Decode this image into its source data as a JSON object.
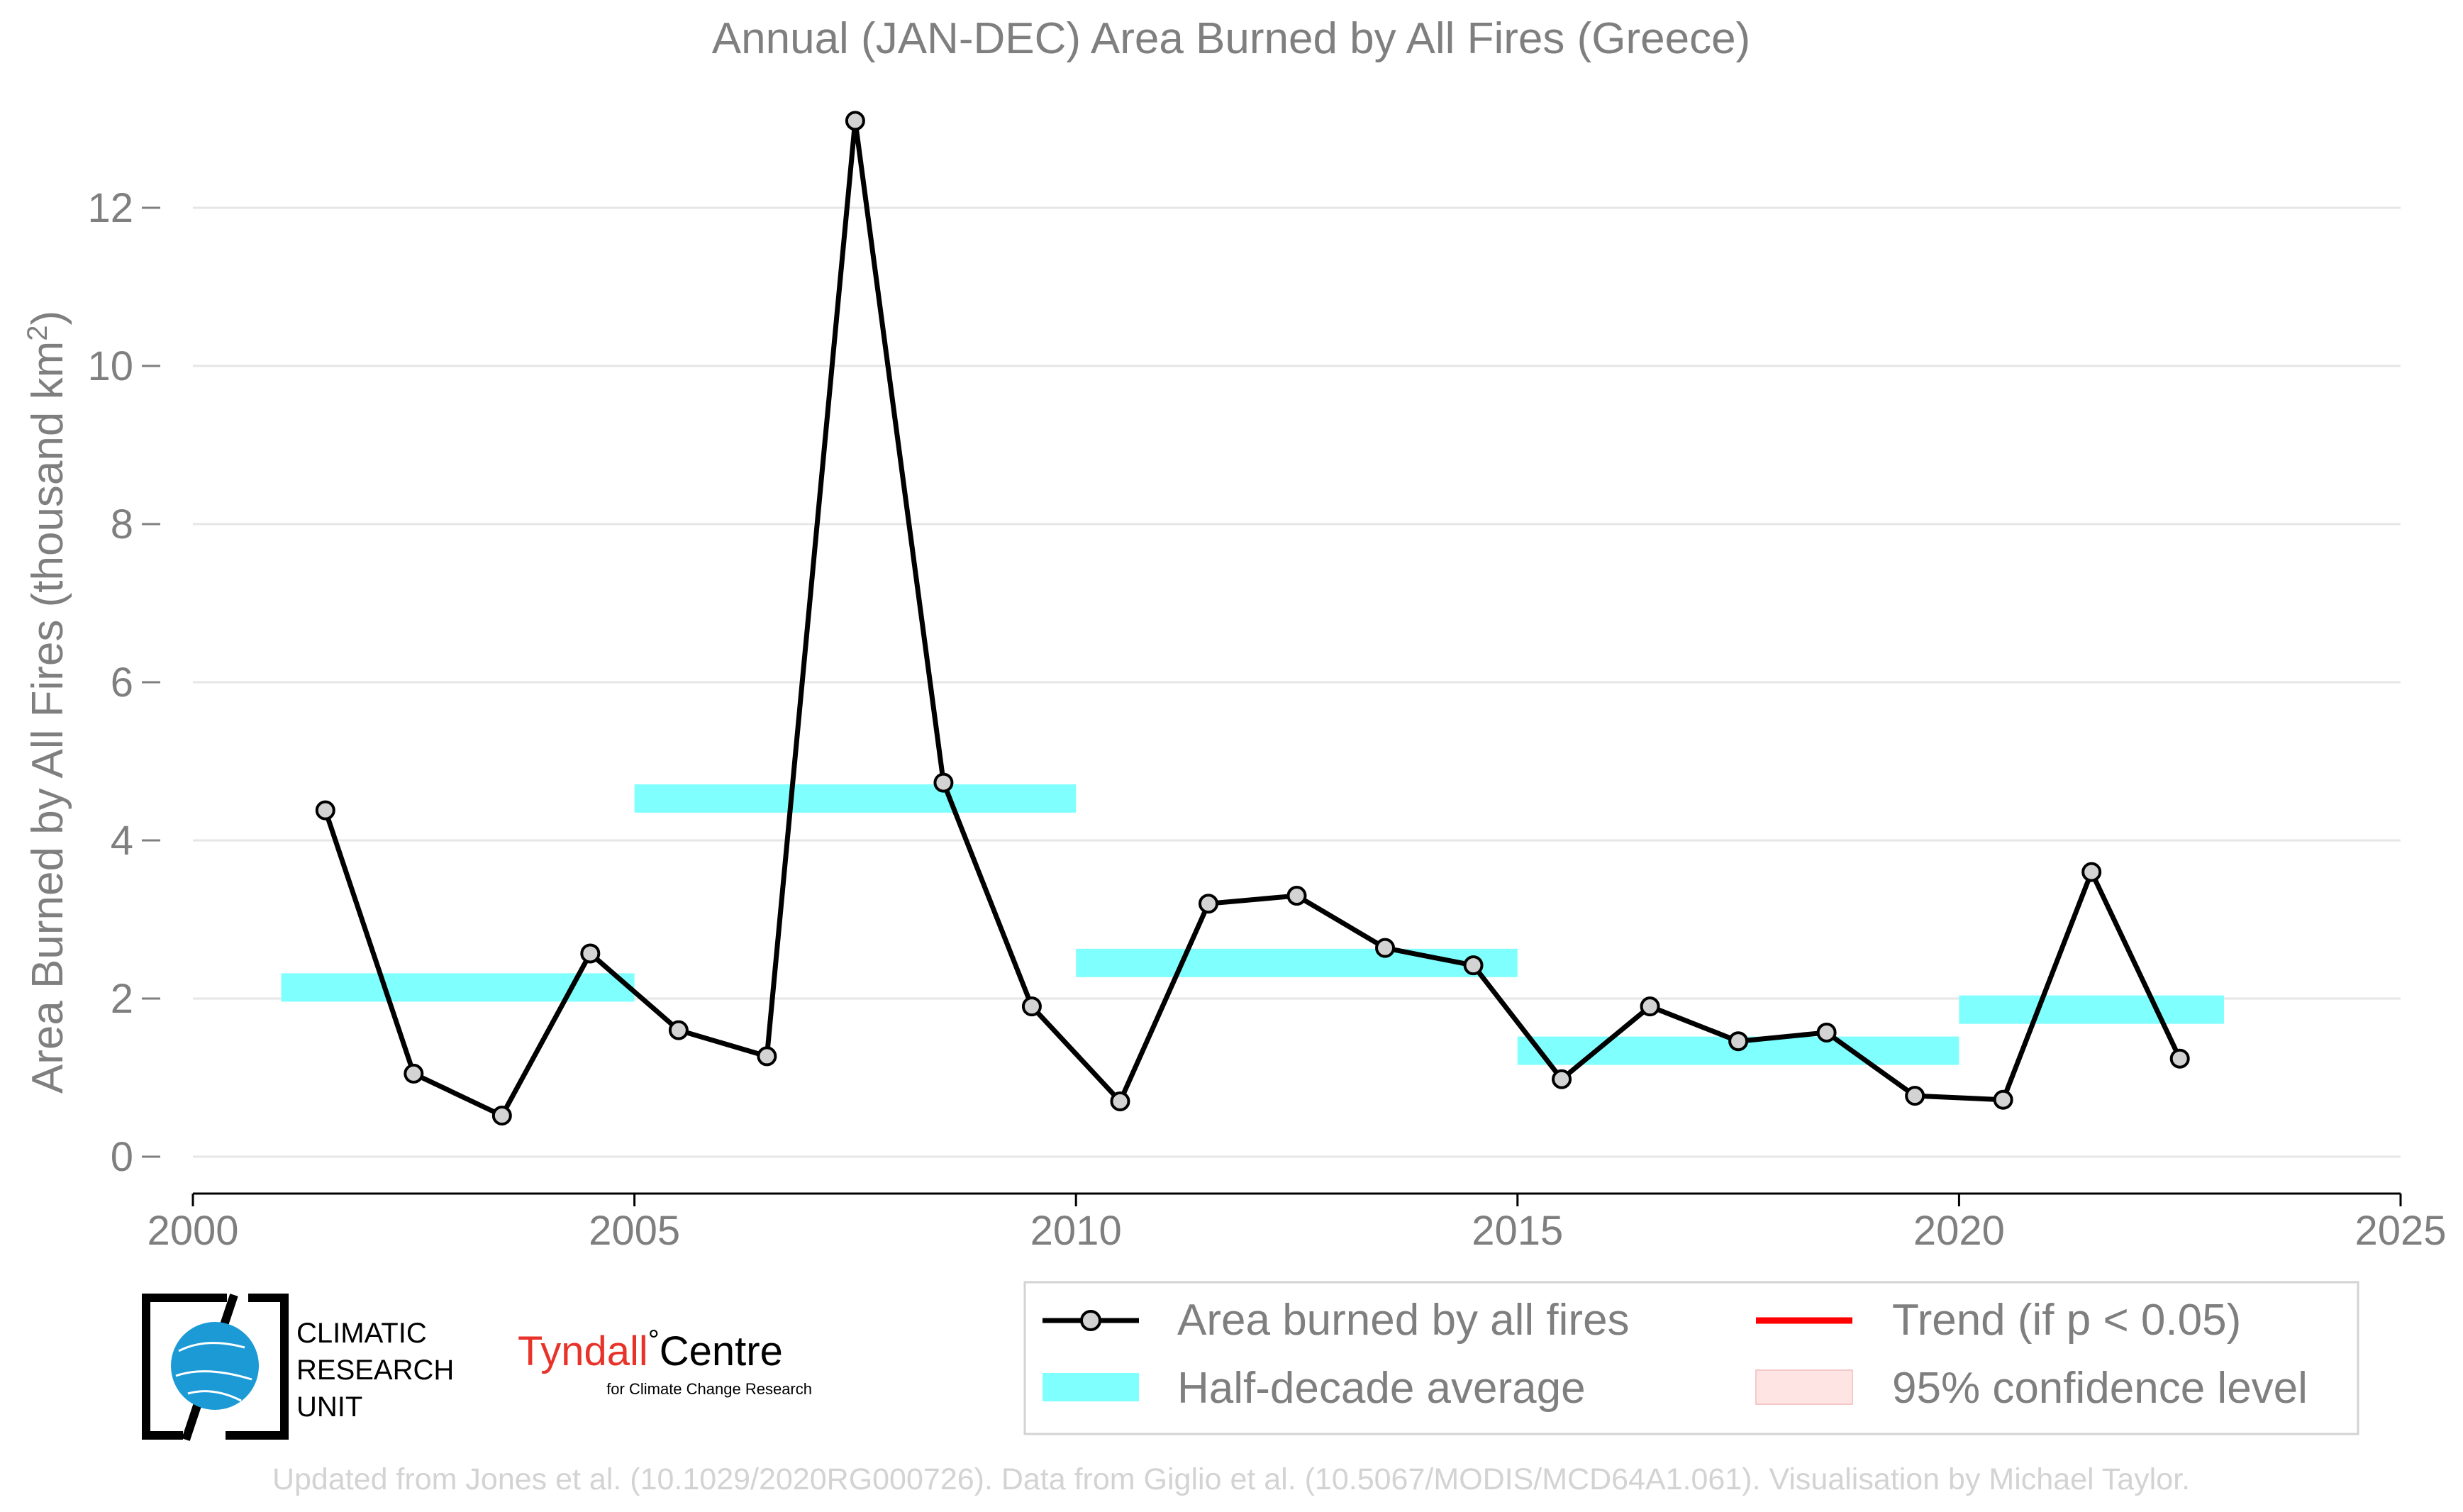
{
  "chart_data": {
    "type": "line",
    "title": "Annual (JAN-DEC) Area Burned by All Fires (Greece)",
    "ylabel": "Area Burned by All Fires (thousand km²)",
    "ylabel_main": "Area Burned by All Fires (thousand km",
    "ylabel_sup": "2",
    "ylabel_close": ")",
    "xlabel": "",
    "xlim": [
      2000,
      2025
    ],
    "ylim": [
      -0.5,
      13.5
    ],
    "xticks": [
      2000,
      2005,
      2010,
      2015,
      2020,
      2025
    ],
    "yticks": [
      0,
      2,
      4,
      6,
      8,
      10,
      12
    ],
    "grid": "horizontal",
    "series": [
      {
        "name": "Area burned by all fires",
        "color": "#000000",
        "marker_fill": "#d3d3d3",
        "x": [
          2001.5,
          2002.5,
          2003.5,
          2004.5,
          2005.5,
          2006.5,
          2007.5,
          2008.5,
          2009.5,
          2010.5,
          2011.5,
          2012.5,
          2013.5,
          2014.5,
          2015.5,
          2016.5,
          2017.5,
          2018.5,
          2019.5,
          2020.5,
          2021.5,
          2022.5
        ],
        "y": [
          4.38,
          1.05,
          0.52,
          2.57,
          1.6,
          1.27,
          13.1,
          4.73,
          1.9,
          0.7,
          3.2,
          3.3,
          2.64,
          2.42,
          0.98,
          1.9,
          1.46,
          1.57,
          0.77,
          0.72,
          3.6,
          1.24
        ]
      }
    ],
    "half_decade_averages": {
      "name": "Half-decade average",
      "color": "#80ffff",
      "segments": [
        {
          "x0": 2001,
          "x1": 2005,
          "y": 2.14
        },
        {
          "x0": 2005,
          "x1": 2010,
          "y": 4.53
        },
        {
          "x0": 2010,
          "x1": 2015,
          "y": 2.45
        },
        {
          "x0": 2015,
          "x1": 2020,
          "y": 1.34
        },
        {
          "x0": 2020,
          "x1": 2023,
          "y": 1.86
        }
      ]
    },
    "legend": {
      "placement": "bottom-right",
      "items": [
        {
          "label": "Area burned by all fires",
          "kind": "line-marker",
          "color": "#000000"
        },
        {
          "label": "Trend (if p < 0.05)",
          "kind": "line",
          "color": "#ff0000"
        },
        {
          "label": "Half-decade average",
          "kind": "band",
          "color": "#80ffff"
        },
        {
          "label": "95% confidence level",
          "kind": "patch",
          "color": "#ffe4e4"
        }
      ]
    }
  },
  "logos": {
    "cru_lines": [
      "CLIMATIC",
      "RESEARCH",
      "UNIT"
    ],
    "tyndall_main": "Tyndall",
    "tyndall_degree": "°",
    "tyndall_centre": "Centre",
    "tyndall_sub": "for Climate Change Research",
    "tyndall_color": "#e8332a",
    "cru_globe_color": "#1b9ad6"
  },
  "footer": {
    "credit": "Updated from Jones et al. (10.1029/2020RG000726). Data from Giglio et al. (10.5067/MODIS/MCD64A1.061). Visualisation by Michael Taylor."
  }
}
